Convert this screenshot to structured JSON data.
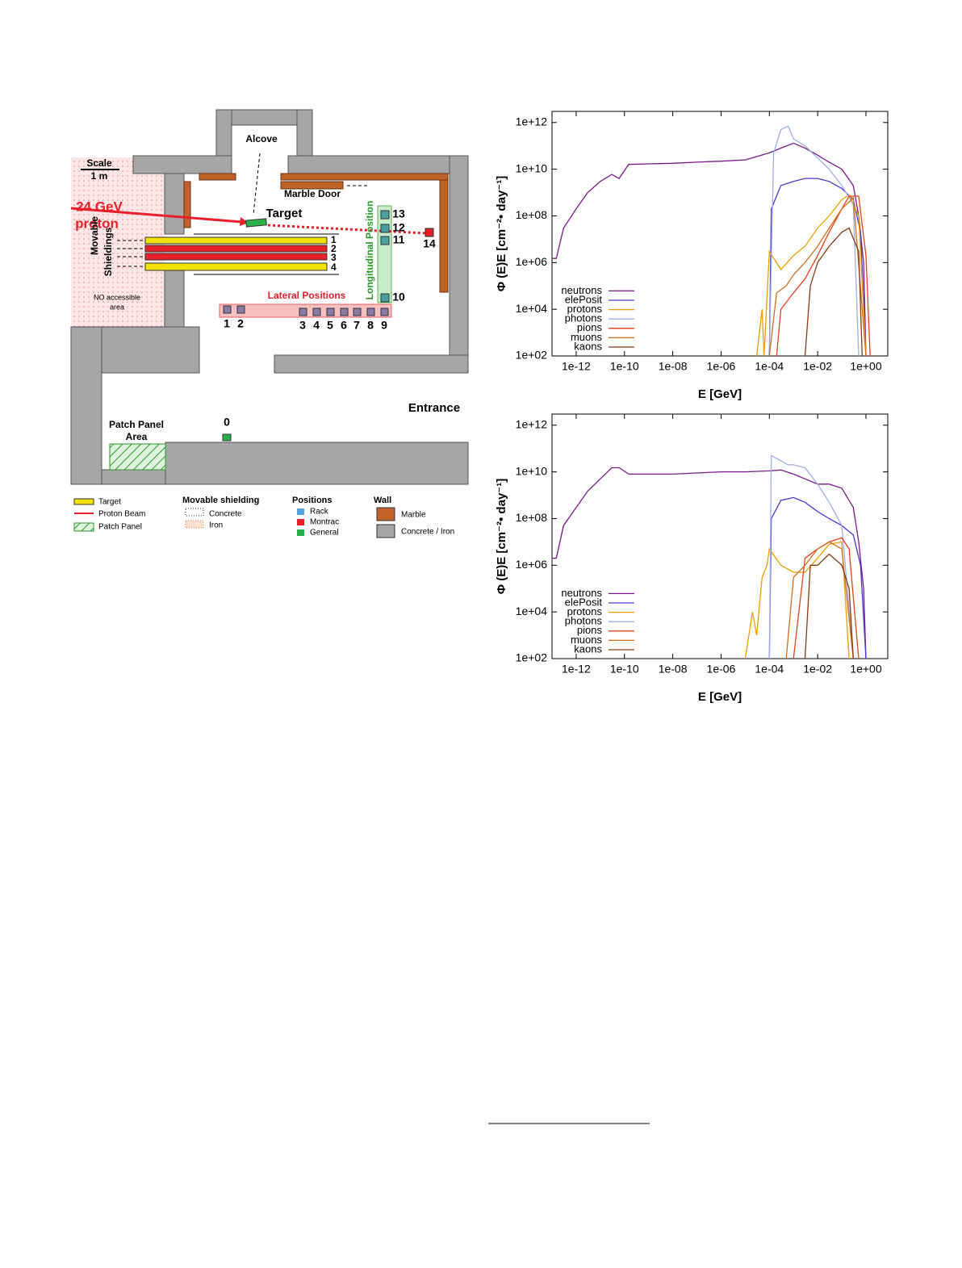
{
  "diagram": {
    "alcove": "Alcove",
    "scale": "Scale",
    "scale_len": "1 m",
    "marble_door": "Marble Door",
    "beam_energy": "24 GeV",
    "beam_particle": "proton",
    "target": "Target",
    "movable": "Movable",
    "shieldings": "Shieldings",
    "no_access": "NO accessible",
    "no_access_2": "area",
    "longitudinal": "Longitudinal Position",
    "lateral": "Lateral Positions",
    "entrance": "Entrance",
    "patch_panel": "Patch Panel",
    "area": "Area",
    "positions": [
      "0",
      "1",
      "2",
      "3",
      "4",
      "5",
      "6",
      "7",
      "8",
      "9",
      "10",
      "11",
      "12",
      "13",
      "14"
    ],
    "shield_numbers": [
      "1",
      "2",
      "3",
      "4"
    ],
    "legend": {
      "target": "Target",
      "proton_beam": "Proton Beam",
      "patch_panel": "Patch Panel",
      "movable_shielding": "Movable shielding",
      "concrete": "Concrete",
      "iron": "Iron",
      "positions": "Positions",
      "rack": "Rack",
      "montrac": "Montrac",
      "general": "General",
      "wall": "Wall",
      "marble": "Marble",
      "concrete_iron": "Concrete / Iron"
    }
  },
  "chart_data": [
    {
      "type": "line",
      "xlabel": "E [GeV]",
      "ylabel": "Φ (E)E [cm⁻²• day⁻¹]",
      "xscale": "log",
      "yscale": "log",
      "legend": "lower left",
      "grid": false,
      "xlim": [
        1e-13,
        8
      ],
      "ylim": [
        100,
        3000000000000.0
      ],
      "xticks": [
        {
          "value": 1e-12,
          "label": "1e-12"
        },
        {
          "value": 1e-10,
          "label": "1e-10"
        },
        {
          "value": 1e-08,
          "label": "1e-08"
        },
        {
          "value": 1e-06,
          "label": "1e-06"
        },
        {
          "value": 0.0001,
          "label": "1e-04"
        },
        {
          "value": 0.01,
          "label": "1e-02"
        },
        {
          "value": 1,
          "label": "1e+00"
        }
      ],
      "yticks": [
        {
          "value": 1000000000000.0,
          "label": "1e+12"
        },
        {
          "value": 10000000000.0,
          "label": "1e+10"
        },
        {
          "value": 100000000.0,
          "label": "1e+08"
        },
        {
          "value": 1000000.0,
          "label": "1e+06"
        },
        {
          "value": 10000.0,
          "label": "1e+04"
        },
        {
          "value": 100,
          "label": "1e+02"
        }
      ],
      "series": [
        {
          "name": "neutrons",
          "color": "#7a1a8a",
          "x": [
            1e-13,
            1.5e-13,
            3e-13,
            1e-12,
            3e-12,
            1e-11,
            3e-11,
            6e-11,
            1.5e-10,
            1e-09,
            1e-08,
            1e-07,
            1e-06,
            1e-05,
            0.0001,
            0.0003,
            0.001,
            0.003,
            0.01,
            0.03,
            0.1,
            0.3,
            0.5,
            0.8,
            1
          ],
          "values": [
            1500000.0,
            1500000.0,
            30000000.0,
            200000000.0,
            1000000000.0,
            3000000000.0,
            6000000000.0,
            4000000000.0,
            16000000000.0,
            17000000000.0,
            18000000000.0,
            20000000000.0,
            22000000000.0,
            25000000000.0,
            50000000000.0,
            80000000000.0,
            130000000000.0,
            80000000000.0,
            40000000000.0,
            20000000000.0,
            10000000000.0,
            2000000000.0,
            100000000.0,
            1000000.0,
            100
          ]
        },
        {
          "name": "elePosit",
          "color": "#4a3ad0",
          "x": [
            0.0001,
            0.00012,
            0.0003,
            0.001,
            0.003,
            0.01,
            0.03,
            0.1,
            0.3,
            0.6,
            1
          ],
          "values": [
            100,
            200000000.0,
            2000000000.0,
            3000000000.0,
            4000000000.0,
            4000000000.0,
            3000000000.0,
            1500000000.0,
            500000000.0,
            20000000.0,
            100
          ]
        },
        {
          "name": "protons",
          "color": "#f0a000",
          "x": [
            3e-05,
            5e-05,
            6e-05,
            0.0001,
            0.0003,
            0.001,
            0.003,
            0.01,
            0.03,
            0.1,
            0.2,
            0.5,
            1
          ],
          "values": [
            100,
            10000.0,
            100,
            3000000.0,
            500000.0,
            2000000.0,
            5000000.0,
            30000000.0,
            100000000.0,
            500000000.0,
            800000000.0,
            100000000.0,
            100
          ]
        },
        {
          "name": "photons",
          "color": "#9eb0e8",
          "x": [
            0.0001,
            0.00015,
            0.0003,
            0.0006,
            0.001,
            0.003,
            0.01,
            0.03,
            0.1,
            0.3,
            0.5
          ],
          "values": [
            100,
            50000000000.0,
            500000000000.0,
            700000000000.0,
            200000000000.0,
            100000000000.0,
            30000000000.0,
            10000000000.0,
            2000000000.0,
            300000000.0,
            100
          ]
        },
        {
          "name": "pions",
          "color": "#e8401a",
          "x": [
            0.0002,
            0.0003,
            0.001,
            0.003,
            0.01,
            0.03,
            0.1,
            0.2,
            0.5,
            1,
            1.5
          ],
          "values": [
            100,
            10000.0,
            50000.0,
            200000.0,
            2000000.0,
            20000000.0,
            200000000.0,
            700000000.0,
            700000000.0,
            2000000.0,
            100
          ]
        },
        {
          "name": "muons",
          "color": "#d07020",
          "x": [
            0.0001,
            0.0002,
            0.0005,
            0.001,
            0.003,
            0.01,
            0.03,
            0.1,
            0.3,
            1
          ],
          "values": [
            100,
            50000.0,
            100000.0,
            300000.0,
            1000000.0,
            5000000.0,
            30000000.0,
            200000000.0,
            600000000.0,
            100
          ]
        },
        {
          "name": "kaons",
          "color": "#8a3a10",
          "x": [
            0.003,
            0.005,
            0.01,
            0.03,
            0.1,
            0.2,
            0.5,
            0.7
          ],
          "values": [
            100,
            100000.0,
            1000000.0,
            5000000.0,
            20000000.0,
            30000000.0,
            3000000.0,
            100
          ]
        }
      ]
    },
    {
      "type": "line",
      "xlabel": "E [GeV]",
      "ylabel": "Φ (E)E [cm⁻²• day⁻¹]",
      "xscale": "log",
      "yscale": "log",
      "legend": "lower left",
      "grid": false,
      "xlim": [
        1e-13,
        8
      ],
      "ylim": [
        100,
        3000000000000.0
      ],
      "xticks": [
        {
          "value": 1e-12,
          "label": "1e-12"
        },
        {
          "value": 1e-10,
          "label": "1e-10"
        },
        {
          "value": 1e-08,
          "label": "1e-08"
        },
        {
          "value": 1e-06,
          "label": "1e-06"
        },
        {
          "value": 0.0001,
          "label": "1e-04"
        },
        {
          "value": 0.01,
          "label": "1e-02"
        },
        {
          "value": 1,
          "label": "1e+00"
        }
      ],
      "yticks": [
        {
          "value": 1000000000000.0,
          "label": "1e+12"
        },
        {
          "value": 10000000000.0,
          "label": "1e+10"
        },
        {
          "value": 100000000.0,
          "label": "1e+08"
        },
        {
          "value": 1000000.0,
          "label": "1e+06"
        },
        {
          "value": 10000.0,
          "label": "1e+04"
        },
        {
          "value": 100,
          "label": "1e+02"
        }
      ],
      "series": [
        {
          "name": "neutrons",
          "color": "#7a1a8a",
          "x": [
            1e-13,
            1.5e-13,
            3e-13,
            1e-12,
            3e-12,
            1e-11,
            3e-11,
            6e-11,
            1.5e-10,
            1e-09,
            1e-08,
            1e-07,
            1e-06,
            1e-05,
            0.0001,
            0.0003,
            0.001,
            0.003,
            0.01,
            0.03,
            0.1,
            0.3,
            0.5,
            0.8,
            1
          ],
          "values": [
            2000000.0,
            2000000.0,
            50000000.0,
            300000000.0,
            1500000000.0,
            5000000000.0,
            15000000000.0,
            15000000000.0,
            8000000000.0,
            8000000000.0,
            8000000000.0,
            9000000000.0,
            10000000000.0,
            10000000000.0,
            11000000000.0,
            12000000000.0,
            8000000000.0,
            5000000000.0,
            3000000000.0,
            3000000000.0,
            2000000000.0,
            300000000.0,
            10000000.0,
            100000.0,
            100
          ]
        },
        {
          "name": "elePosit",
          "color": "#4a3ad0",
          "x": [
            0.0001,
            0.00012,
            0.0003,
            0.001,
            0.003,
            0.01,
            0.03,
            0.1,
            0.3,
            0.6,
            1
          ],
          "values": [
            100,
            100000000.0,
            600000000.0,
            800000000.0,
            500000000.0,
            200000000.0,
            100000000.0,
            50000000.0,
            20000000.0,
            1000000.0,
            100
          ]
        },
        {
          "name": "protons",
          "color": "#f0a000",
          "x": [
            1e-05,
            2e-05,
            3e-05,
            5e-05,
            8e-05,
            0.0001,
            0.0003,
            0.001,
            0.003,
            0.01,
            0.03,
            0.1,
            0.2
          ],
          "values": [
            100,
            10000.0,
            1000,
            300000.0,
            1000000.0,
            5000000.0,
            1000000.0,
            500000.0,
            500000.0,
            2000000.0,
            8000000.0,
            10000000.0,
            100
          ]
        },
        {
          "name": "photons",
          "color": "#9eb0e8",
          "x": [
            0.0001,
            0.00012,
            0.0003,
            0.0006,
            0.001,
            0.003,
            0.01,
            0.03,
            0.1,
            0.3
          ],
          "values": [
            100,
            50000000000.0,
            30000000000.0,
            20000000000.0,
            20000000000.0,
            15000000000.0,
            3000000000.0,
            500000000.0,
            50000000.0,
            100
          ]
        },
        {
          "name": "pions",
          "color": "#e8401a",
          "x": [
            0.001,
            0.003,
            0.01,
            0.03,
            0.1,
            0.2,
            0.5
          ],
          "values": [
            100,
            2000000.0,
            5000000.0,
            10000000.0,
            15000000.0,
            5000000.0,
            100
          ]
        },
        {
          "name": "muons",
          "color": "#d07020",
          "x": [
            0.0005,
            0.001,
            0.003,
            0.01,
            0.03,
            0.1,
            0.3
          ],
          "values": [
            100,
            300000.0,
            1000000.0,
            5000000.0,
            10000000.0,
            5000000.0,
            100
          ]
        },
        {
          "name": "kaons",
          "color": "#8a3a10",
          "x": [
            0.003,
            0.005,
            0.01,
            0.03,
            0.1,
            0.2,
            0.3
          ],
          "values": [
            100,
            1000000.0,
            1000000.0,
            3000000.0,
            1000000.0,
            100000.0,
            100
          ]
        }
      ]
    }
  ]
}
